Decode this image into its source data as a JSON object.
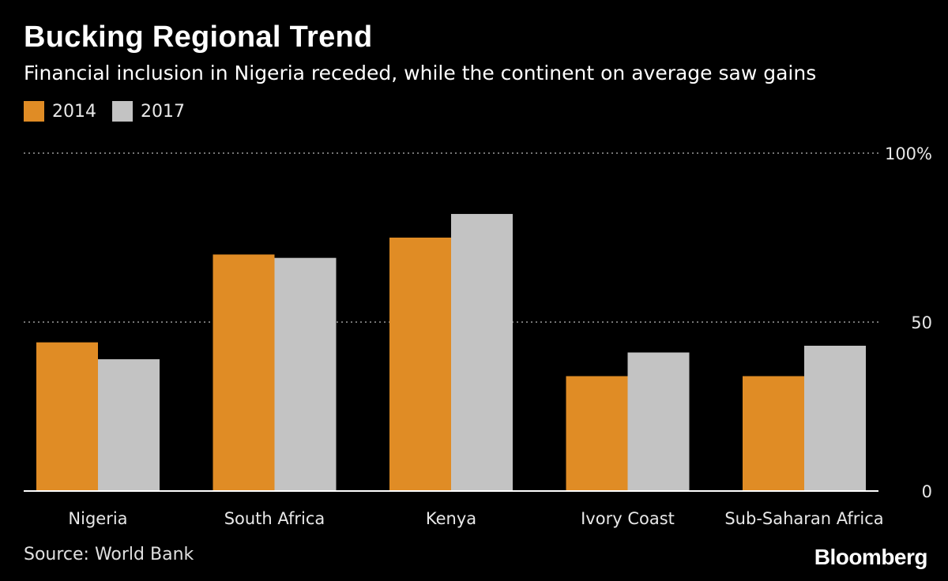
{
  "title": "Bucking Regional Trend",
  "subtitle": "Financial inclusion in Nigeria receded, while the continent on average saw gains",
  "source": "Source: World Bank",
  "brand": "Bloomberg",
  "colors": {
    "series_2014": "#e08c25",
    "series_2017": "#c3c3c3",
    "grid": "#9a9a9a",
    "axis": "#ffffff"
  },
  "chart_data": {
    "type": "bar",
    "title": "Bucking Regional Trend",
    "subtitle": "Financial inclusion in Nigeria receded, while the continent on average saw gains",
    "categories": [
      "Nigeria",
      "South Africa",
      "Kenya",
      "Ivory Coast",
      "Sub-Saharan Africa"
    ],
    "series": [
      {
        "name": "2014",
        "values": [
          44,
          70,
          75,
          34,
          34
        ]
      },
      {
        "name": "2017",
        "values": [
          39,
          69,
          82,
          41,
          43
        ]
      }
    ],
    "ylim": [
      0,
      100
    ],
    "yticks": [
      0,
      50,
      100
    ],
    "ytick_labels": [
      "0",
      "50",
      "100%"
    ],
    "xlabel": "",
    "ylabel": "",
    "legend": "top-left",
    "grid": true
  }
}
